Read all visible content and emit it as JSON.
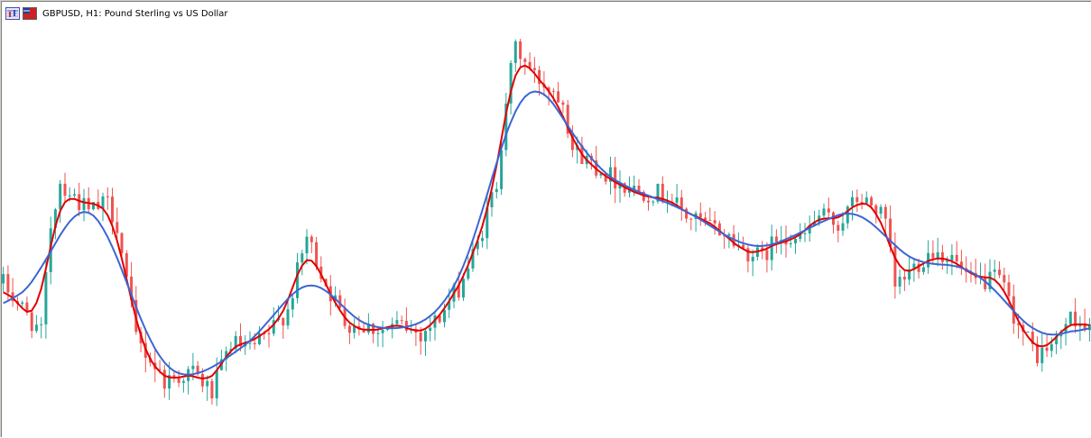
{
  "window": {
    "title": "GBPUSD, H1:  Pound Sterling vs US Dollar"
  },
  "icons": {
    "chart_icon": "chart-window-icon",
    "symbol_icon": "symbol-flag-icon"
  },
  "colors": {
    "bull": "#26a69a",
    "bear": "#ef5350",
    "ma_fast": "#e00000",
    "ma_slow": "#3a66d4",
    "background": "#ffffff"
  },
  "chart_data": {
    "type": "candlestick",
    "symbol": "GBPUSD",
    "timeframe": "H1",
    "description": "Pound Sterling vs US Dollar",
    "y_range": [
      0.0,
      100.0
    ],
    "y_units": "relative price (0 = bottom of view, 100 = top of view)",
    "candle_count": 230,
    "anchors": [
      [
        0,
        36
      ],
      [
        8,
        24
      ],
      [
        10,
        50
      ],
      [
        12,
        60
      ],
      [
        18,
        53
      ],
      [
        22,
        55
      ],
      [
        24,
        50
      ],
      [
        28,
        23
      ],
      [
        34,
        13
      ],
      [
        40,
        15
      ],
      [
        44,
        10
      ],
      [
        48,
        22
      ],
      [
        52,
        20
      ],
      [
        56,
        24
      ],
      [
        60,
        30
      ],
      [
        64,
        47
      ],
      [
        68,
        36
      ],
      [
        72,
        27
      ],
      [
        76,
        26
      ],
      [
        80,
        25
      ],
      [
        84,
        26
      ],
      [
        88,
        24
      ],
      [
        92,
        28
      ],
      [
        96,
        35
      ],
      [
        100,
        45
      ],
      [
        104,
        60
      ],
      [
        106,
        80
      ],
      [
        108,
        92
      ],
      [
        112,
        85
      ],
      [
        116,
        82
      ],
      [
        118,
        80
      ],
      [
        120,
        68
      ],
      [
        126,
        63
      ],
      [
        130,
        60
      ],
      [
        134,
        58
      ],
      [
        140,
        57
      ],
      [
        144,
        52
      ],
      [
        148,
        50
      ],
      [
        152,
        48
      ],
      [
        156,
        44
      ],
      [
        160,
        42
      ],
      [
        164,
        48
      ],
      [
        168,
        46
      ],
      [
        172,
        52
      ],
      [
        176,
        50
      ],
      [
        180,
        56
      ],
      [
        184,
        54
      ],
      [
        186,
        50
      ],
      [
        188,
        35
      ],
      [
        192,
        40
      ],
      [
        196,
        44
      ],
      [
        200,
        42
      ],
      [
        204,
        36
      ],
      [
        210,
        37
      ],
      [
        214,
        26
      ],
      [
        218,
        19
      ],
      [
        222,
        22
      ],
      [
        224,
        27
      ],
      [
        226,
        28
      ],
      [
        229,
        25
      ]
    ],
    "series": [
      {
        "name": "",
        "color": "#e00000",
        "kind": "moving-average-fast"
      },
      {
        "name": "",
        "color": "#3a66d4",
        "kind": "moving-average-slow"
      }
    ]
  }
}
